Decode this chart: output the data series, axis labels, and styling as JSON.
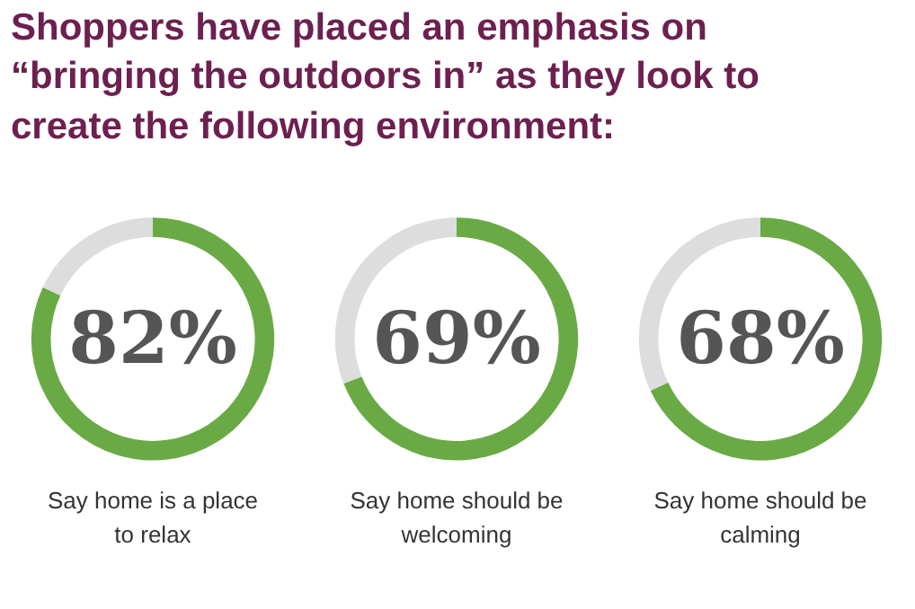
{
  "chart_data": [
    {
      "type": "donut",
      "title": "Shoppers have placed an emphasis on “bringing the outdoors in” as they look to create the following environment:",
      "categories": [
        null,
        null
      ],
      "values": [
        82,
        18
      ],
      "colors": [
        "#6aaa45",
        "#dddddd"
      ],
      "annotations": [
        "82%"
      ],
      "xlabel": "Say home is a place to relax"
    },
    {
      "type": "donut",
      "categories": [
        null,
        null
      ],
      "values": [
        69,
        31
      ],
      "colors": [
        "#6aaa45",
        "#dddddd"
      ],
      "annotations": [
        "69%"
      ],
      "xlabel": "Say home should be welcoming"
    },
    {
      "type": "donut",
      "categories": [
        null,
        null
      ],
      "values": [
        68,
        32
      ],
      "colors": [
        "#6aaa45",
        "#dddddd"
      ],
      "annotations": [
        "68%"
      ],
      "xlabel": "Say home should be calming"
    }
  ]
}
